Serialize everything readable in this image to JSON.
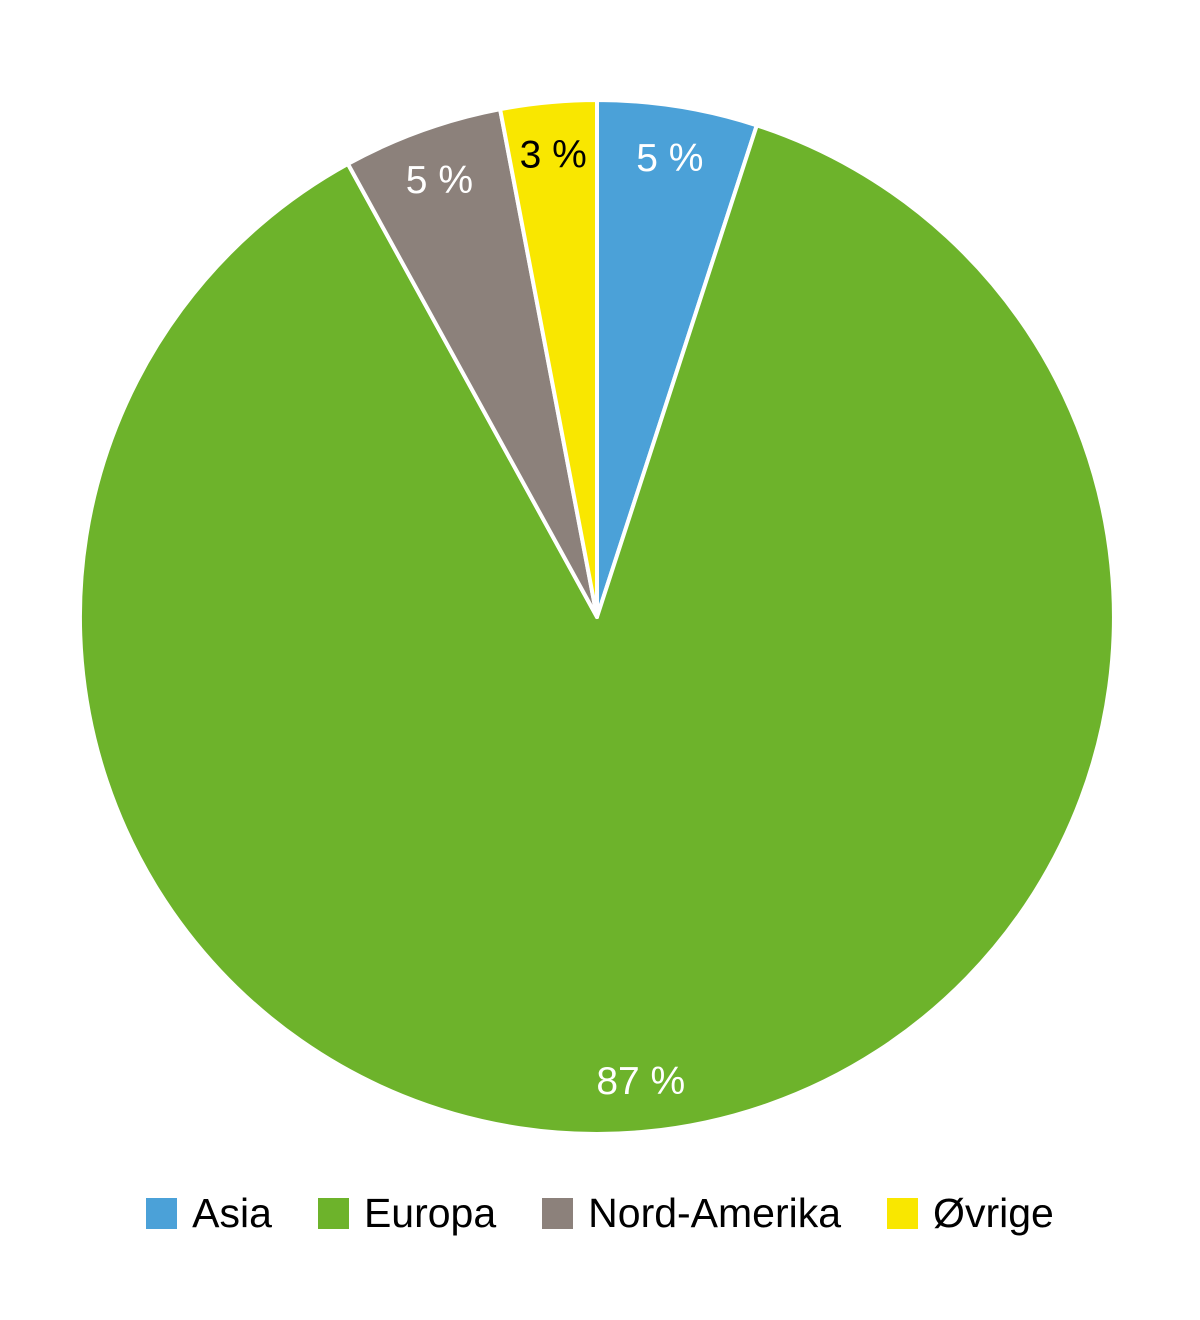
{
  "chart_data": {
    "type": "pie",
    "title": "",
    "direction": "clockwise",
    "start_angle_deg": 0,
    "unit": "%",
    "slices": [
      {
        "name": "Asia",
        "value": 5,
        "label": "5 %",
        "color": "#4BA1D8",
        "label_color": "#FFFFFF"
      },
      {
        "name": "Europa",
        "value": 87,
        "label": "87 %",
        "color": "#6DB32B",
        "label_color": "#FFFFFF"
      },
      {
        "name": "Nord-Amerika",
        "value": 5,
        "label": "5 %",
        "color": "#8C817B",
        "label_color": "#FFFFFF"
      },
      {
        "name": "Øvrige",
        "value": 3,
        "label": "3 %",
        "color": "#F9E700",
        "label_color": "#000000"
      }
    ],
    "legend": {
      "position": "bottom",
      "items": [
        "Asia",
        "Europa",
        "Nord-Amerika",
        "Øvrige"
      ]
    }
  }
}
